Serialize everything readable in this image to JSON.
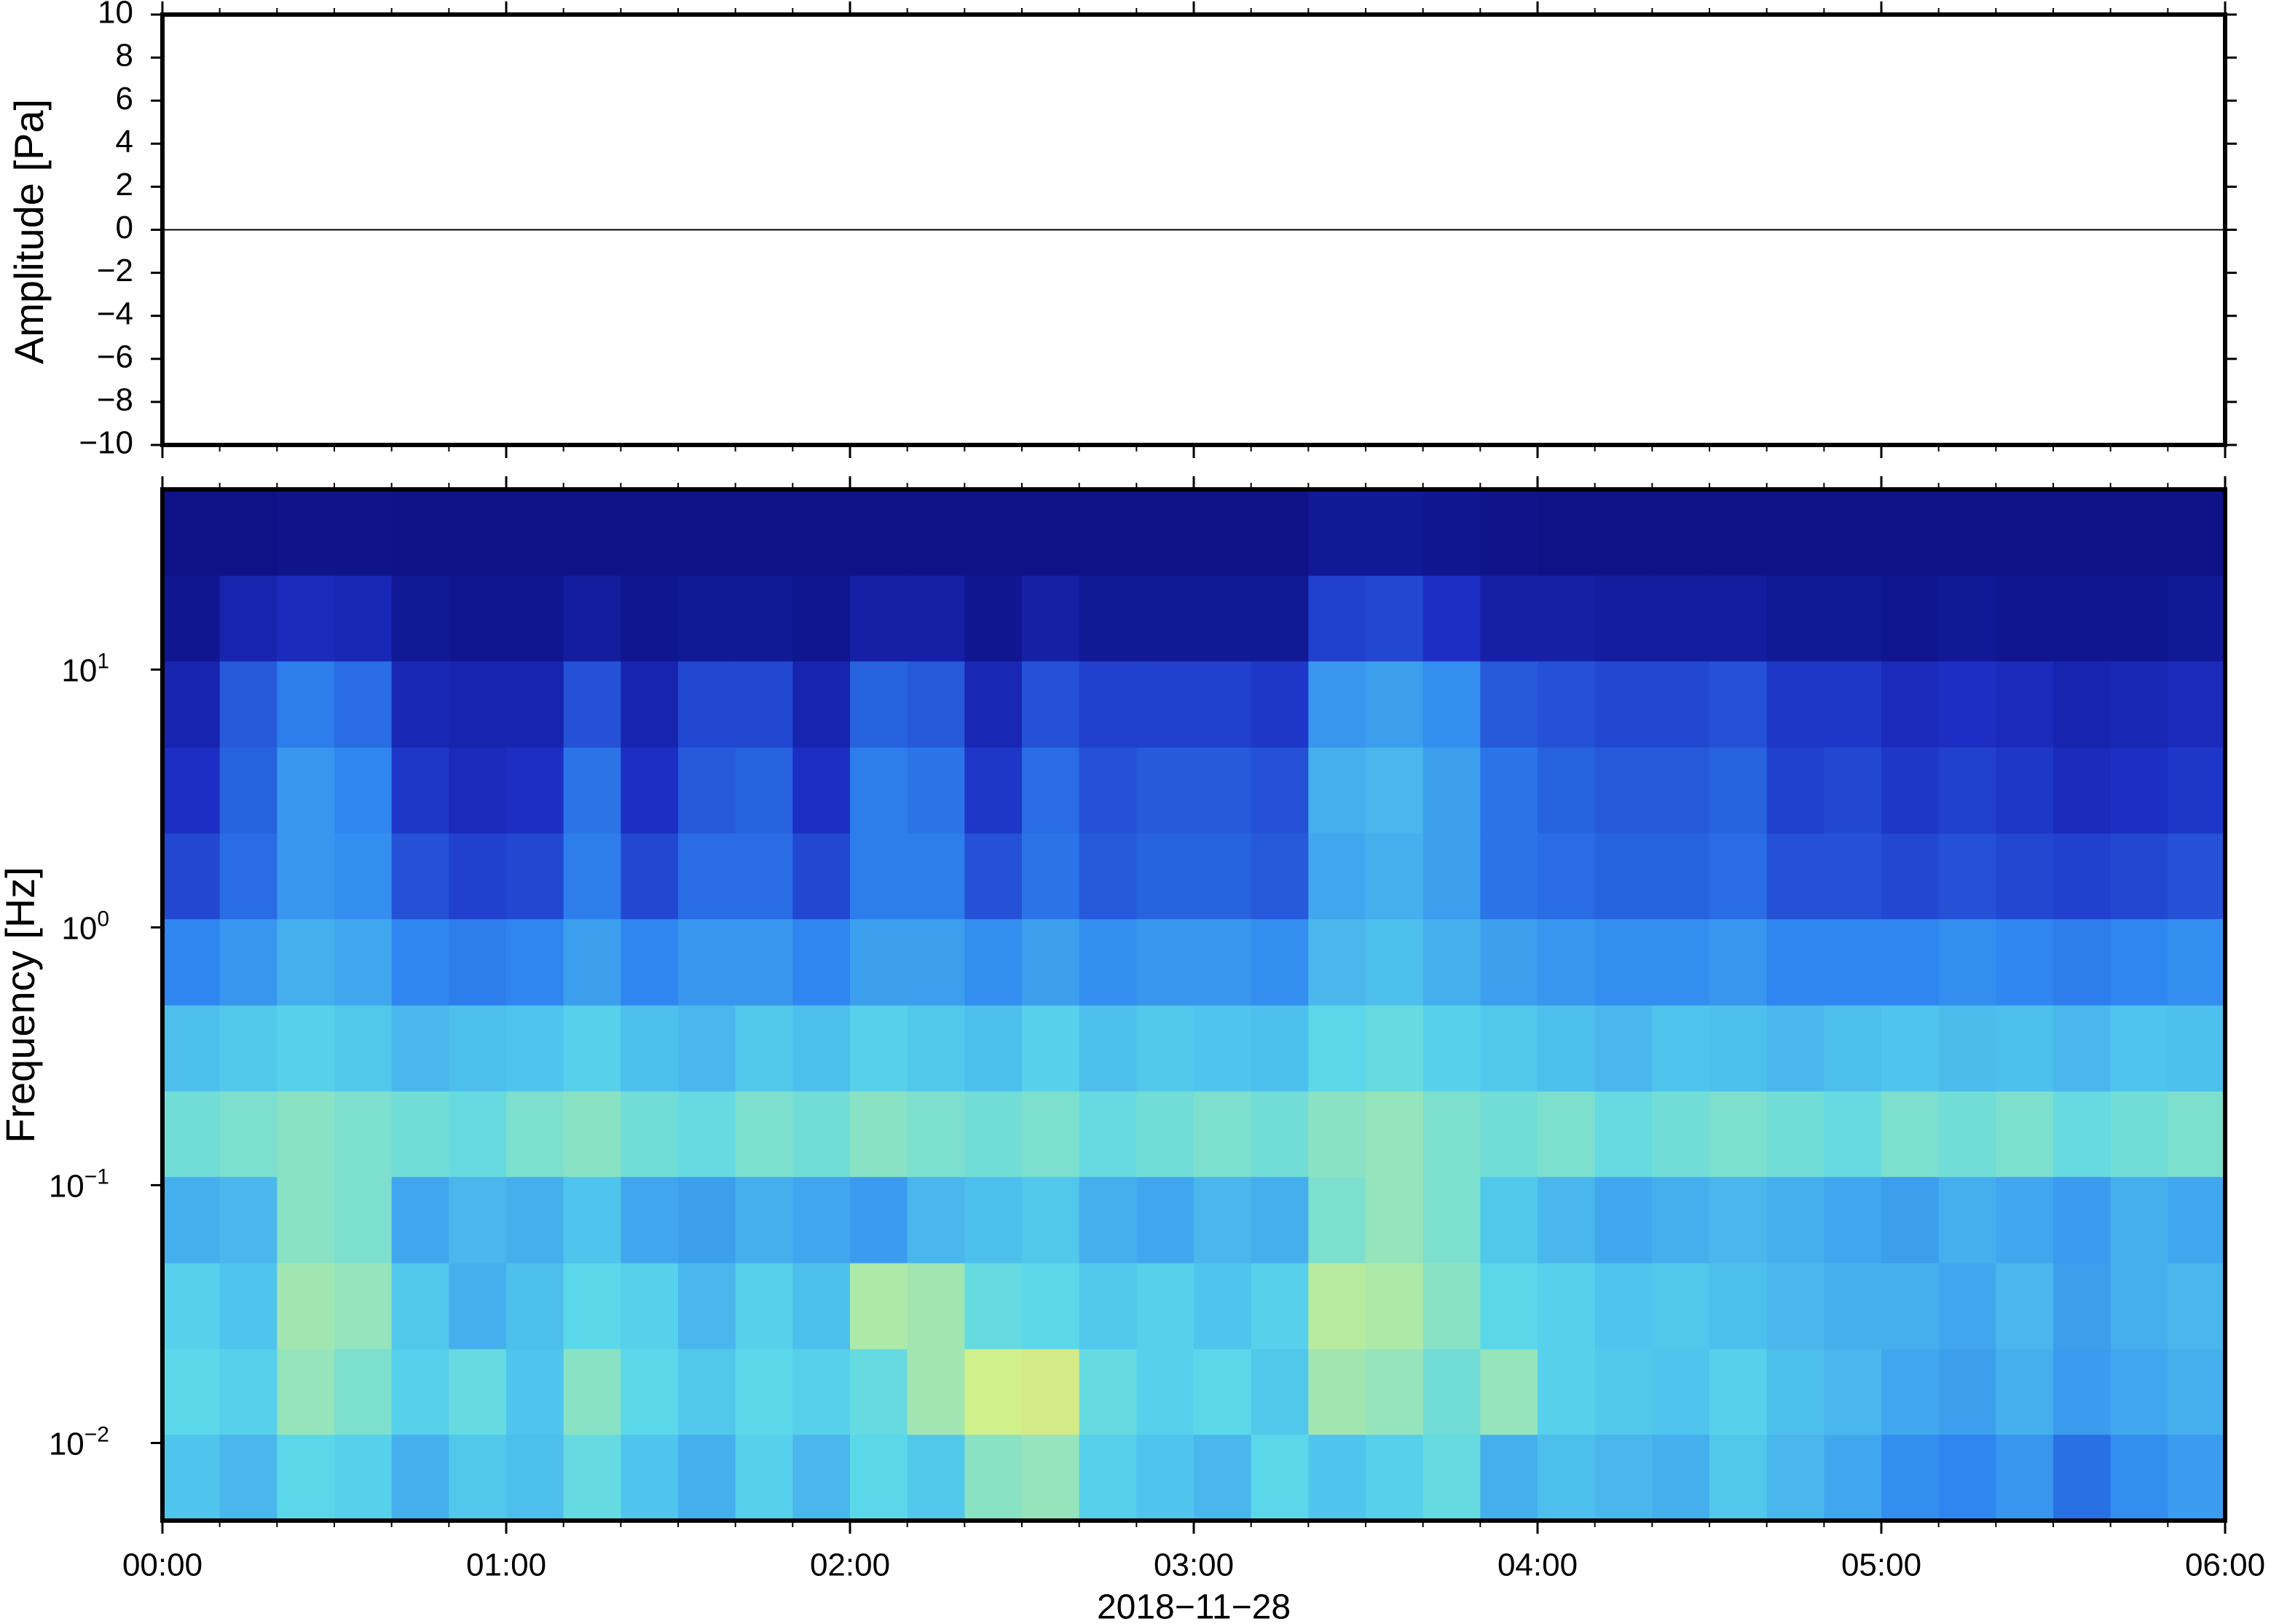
{
  "chart_data": [
    {
      "type": "line",
      "ylabel": "Amplitude [Pa]",
      "color": "#000000",
      "x": [
        0,
        30,
        60,
        90,
        120,
        150,
        180,
        210,
        240,
        270,
        300,
        330,
        360
      ],
      "values": [
        0,
        0,
        0,
        0,
        0,
        0,
        0,
        0,
        0,
        0,
        0,
        0,
        0
      ],
      "xlim": [
        0,
        360
      ],
      "ylim": [
        -10,
        10
      ],
      "yticks": [
        {
          "value": -10,
          "label": "−10"
        },
        {
          "value": -8,
          "label": "−8"
        },
        {
          "value": -6,
          "label": "−6"
        },
        {
          "value": -4,
          "label": "−4"
        },
        {
          "value": -2,
          "label": "−2"
        },
        0,
        2,
        4,
        6,
        8,
        10
      ]
    },
    {
      "type": "spectrogram",
      "ylabel": "Frequency [Hz]",
      "xlabel": "2018−11−28",
      "log_y": true,
      "xlim": [
        0,
        360
      ],
      "ylim": [
        0.005,
        50
      ],
      "xticks": [
        {
          "value": 0,
          "label": "00:00"
        },
        {
          "value": 60,
          "label": "01:00"
        },
        {
          "value": 120,
          "label": "02:00"
        },
        {
          "value": 180,
          "label": "03:00"
        },
        {
          "value": 240,
          "label": "04:00"
        },
        {
          "value": 300,
          "label": "05:00"
        },
        {
          "value": 360,
          "label": "06:00"
        }
      ],
      "yticks": [
        {
          "value": 0.01,
          "label": "10",
          "exponent": "−2"
        },
        {
          "value": 0.1,
          "label": "10",
          "exponent": "−1"
        },
        {
          "value": 1,
          "label": "10",
          "exponent": "0"
        },
        {
          "value": 10,
          "label": "10",
          "exponent": "1"
        }
      ],
      "time_bins": [
        0,
        10,
        20,
        30,
        40,
        50,
        60,
        70,
        80,
        90,
        100,
        110,
        120,
        130,
        140,
        150,
        160,
        170,
        180,
        190,
        200,
        210,
        220,
        230,
        240,
        250,
        260,
        270,
        280,
        290,
        300,
        310,
        320,
        330,
        340,
        350,
        360
      ],
      "frequency_bins": [
        0.005,
        0.0108,
        0.0232,
        0.05,
        0.108,
        0.232,
        0.5,
        1.08,
        2.32,
        5,
        10.8,
        23.2,
        50
      ],
      "zlim": [
        0,
        100
      ],
      "colormap": [
        "#0b0b78",
        "#1c2ec4",
        "#2f86f0",
        "#5ad8ea",
        "#d0f08c",
        "#f7b84e"
      ],
      "z": [
        [
          55,
          52,
          60,
          58,
          50,
          56,
          54,
          62,
          55,
          50,
          58,
          52,
          60,
          56,
          68,
          70,
          58,
          55,
          52,
          60,
          55,
          58,
          62,
          50,
          54,
          52,
          50,
          56,
          52,
          48,
          42,
          40,
          44,
          35,
          42,
          45
        ],
        [
          60,
          58,
          70,
          66,
          58,
          62,
          55,
          68,
          60,
          56,
          60,
          58,
          62,
          72,
          80,
          82,
          62,
          58,
          60,
          56,
          72,
          70,
          64,
          70,
          58,
          56,
          55,
          58,
          54,
          52,
          48,
          46,
          50,
          45,
          48,
          50
        ],
        [
          58,
          55,
          72,
          70,
          56,
          50,
          54,
          60,
          58,
          52,
          58,
          54,
          74,
          72,
          62,
          60,
          56,
          58,
          55,
          58,
          76,
          74,
          68,
          60,
          58,
          55,
          56,
          54,
          52,
          50,
          50,
          48,
          52,
          46,
          50,
          52
        ],
        [
          50,
          52,
          68,
          66,
          48,
          52,
          50,
          55,
          48,
          46,
          50,
          48,
          45,
          52,
          54,
          56,
          50,
          48,
          52,
          50,
          66,
          70,
          66,
          56,
          52,
          48,
          50,
          52,
          50,
          48,
          46,
          50,
          48,
          45,
          50,
          48
        ],
        [
          64,
          66,
          68,
          66,
          64,
          62,
          66,
          68,
          64,
          62,
          66,
          64,
          68,
          66,
          64,
          66,
          62,
          64,
          66,
          64,
          68,
          70,
          66,
          64,
          66,
          62,
          64,
          66,
          64,
          62,
          66,
          64,
          66,
          62,
          64,
          66
        ],
        [
          54,
          56,
          58,
          56,
          52,
          54,
          55,
          58,
          54,
          52,
          56,
          54,
          58,
          56,
          54,
          58,
          54,
          56,
          55,
          54,
          60,
          62,
          58,
          56,
          54,
          52,
          55,
          54,
          52,
          54,
          55,
          53,
          54,
          52,
          55,
          54
        ],
        [
          40,
          44,
          50,
          48,
          40,
          38,
          40,
          46,
          40,
          44,
          44,
          40,
          46,
          46,
          42,
          46,
          42,
          44,
          44,
          42,
          52,
          54,
          50,
          46,
          44,
          42,
          42,
          44,
          40,
          40,
          40,
          42,
          40,
          38,
          40,
          42
        ],
        [
          26,
          34,
          44,
          42,
          28,
          24,
          26,
          38,
          26,
          34,
          34,
          26,
          38,
          38,
          28,
          36,
          30,
          32,
          32,
          30,
          48,
          50,
          46,
          36,
          34,
          32,
          32,
          34,
          28,
          28,
          26,
          28,
          26,
          24,
          26,
          28
        ],
        [
          20,
          32,
          44,
          40,
          22,
          18,
          20,
          36,
          20,
          30,
          32,
          20,
          38,
          36,
          22,
          34,
          28,
          30,
          30,
          28,
          50,
          52,
          46,
          36,
          32,
          30,
          30,
          32,
          24,
          26,
          22,
          24,
          22,
          18,
          20,
          22
        ],
        [
          14,
          30,
          38,
          34,
          16,
          14,
          14,
          28,
          14,
          26,
          26,
          14,
          32,
          30,
          16,
          28,
          24,
          24,
          24,
          22,
          44,
          46,
          42,
          30,
          28,
          26,
          26,
          28,
          22,
          22,
          18,
          20,
          18,
          14,
          16,
          18
        ],
        [
          6,
          14,
          18,
          16,
          8,
          6,
          6,
          10,
          6,
          8,
          8,
          6,
          12,
          12,
          6,
          12,
          8,
          8,
          8,
          8,
          24,
          26,
          20,
          12,
          12,
          10,
          10,
          10,
          8,
          8,
          6,
          8,
          6,
          6,
          6,
          8
        ],
        [
          4,
          4,
          5,
          5,
          4,
          4,
          4,
          4,
          4,
          4,
          4,
          4,
          4,
          4,
          4,
          4,
          4,
          4,
          4,
          4,
          8,
          8,
          6,
          5,
          4,
          4,
          4,
          4,
          4,
          4,
          4,
          4,
          4,
          4,
          4,
          4
        ]
      ]
    }
  ]
}
